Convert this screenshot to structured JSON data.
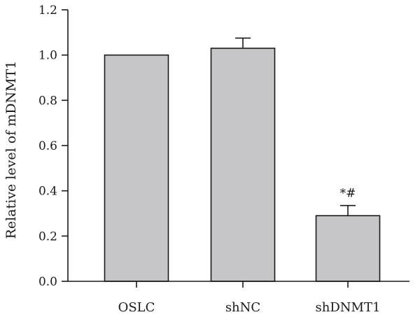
{
  "chart_data": {
    "type": "bar",
    "title": "",
    "xlabel": "",
    "ylabel": "Relative level of mDNMT1",
    "categories": [
      "OSLC",
      "shNC",
      "shDNMT1"
    ],
    "values": [
      1.0,
      1.03,
      0.29
    ],
    "errors": [
      0,
      0.045,
      0.045
    ],
    "annotations": [
      "",
      "",
      "*#"
    ],
    "ylim": [
      0,
      1.2
    ],
    "yticks": [
      "0.0",
      "0.2",
      "0.4",
      "0.6",
      "0.8",
      "1.0",
      "1.2"
    ],
    "grid": false,
    "legend": "none",
    "bar_color": "#c6c6c8",
    "edge_color": "#1a1a1a"
  }
}
